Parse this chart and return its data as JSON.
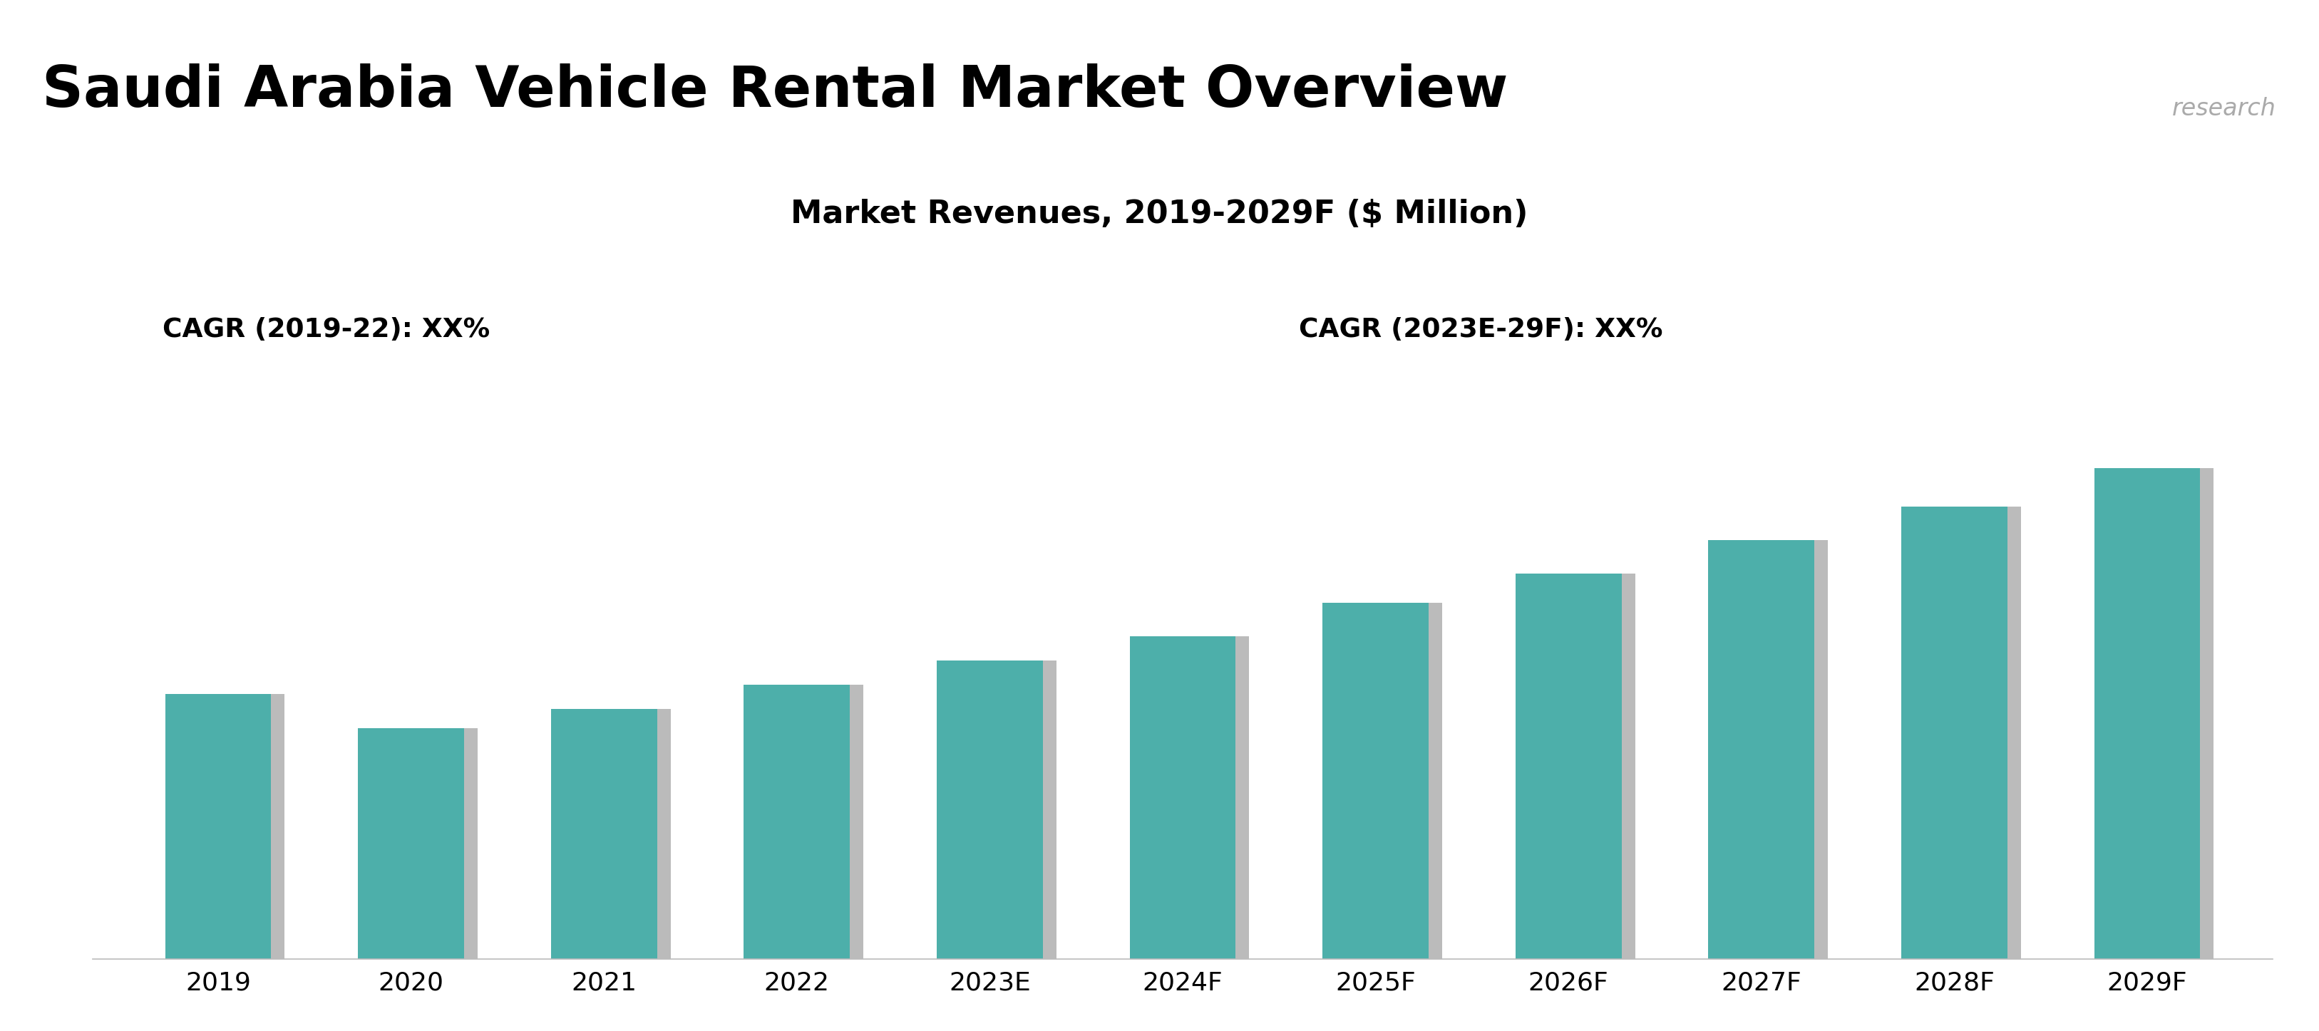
{
  "title": "Saudi Arabia Vehicle Rental Market Overview",
  "subtitle": "Market Revenues, 2019-2029F ($ Million)",
  "cagr_left": "CAGR (2019-22): XX%",
  "cagr_right": "CAGR (2023E-29F): XX%",
  "categories": [
    "2019",
    "2020",
    "2021",
    "2022",
    "2023E",
    "2024F",
    "2025F",
    "2026F",
    "2027F",
    "2028F",
    "2029F"
  ],
  "values": [
    55,
    48,
    52,
    57,
    62,
    67,
    74,
    80,
    87,
    94,
    102
  ],
  "bar_color": "#4DAFAA",
  "bar_shadow_color": "#bbbbbb",
  "background_top": "#C5CFE3",
  "background_chart": "#ffffff",
  "title_color": "#000000",
  "subtitle_color": "#000000",
  "cagr_color": "#000000",
  "xlabel_color": "#000000",
  "logo_bg": "#1B2A3B",
  "logo_text_6W": "#ffffff",
  "logo_text_research": "#aaaaaa",
  "title_fontsize": 58,
  "subtitle_fontsize": 32,
  "cagr_fontsize": 27,
  "xlabel_fontsize": 26,
  "ylim": [
    0,
    120
  ],
  "bar_width": 0.55
}
